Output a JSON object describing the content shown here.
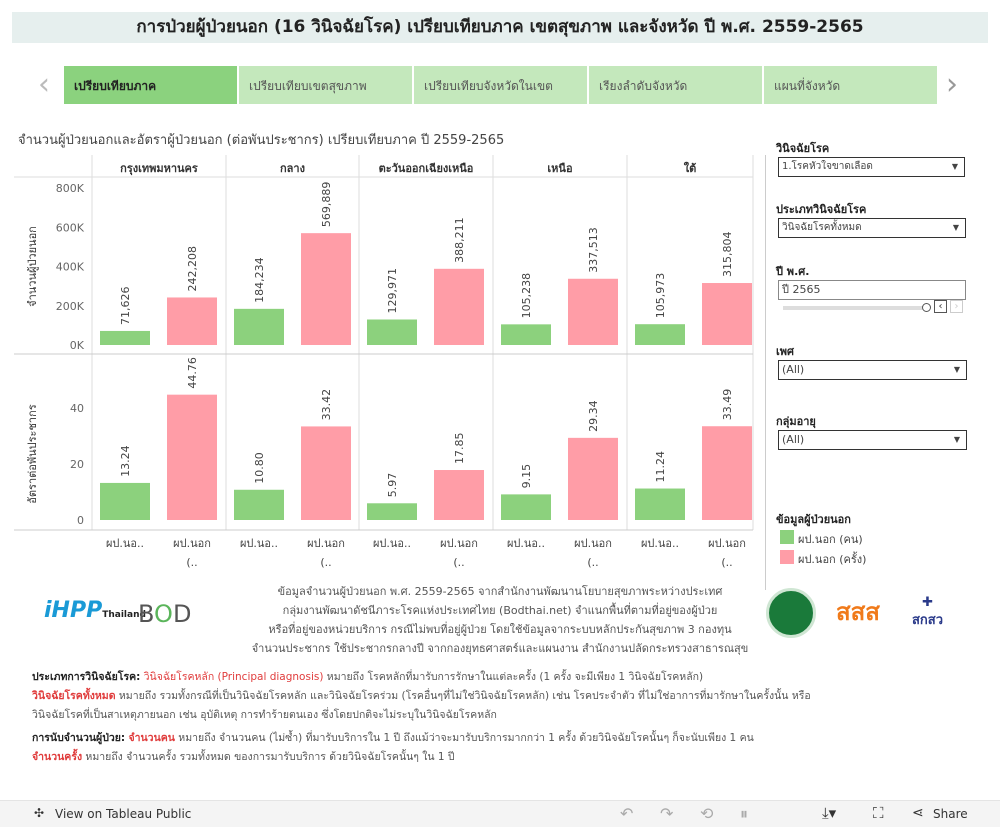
{
  "title": "การป่วยผู้ป่วยนอก (16 วินิจฉัยโรค) เปรียบเทียบภาค เขตสุขภาพ และจังหวัด ปี พ.ศ. 2559-2565",
  "tabs": [
    "เปรียบเทียบภาค",
    "เปรียบเทียบเขตสุขภาพ",
    "เปรียบเทียบจังหวัดในเขต",
    "เรียงลำดับจังหวัด",
    "แผนที่จังหวัด"
  ],
  "chart_title": "จำนวนผู้ป่วยนอกและอัตราผู้ป่วยนอก (ต่อพันประชากร) เปรียบเทียบภาค ปี 2559-2565",
  "chart_data": {
    "type": "bar",
    "regions": [
      "กรุงเทพมหานคร",
      "กลาง",
      "ตะวันออกเฉียงเหนือ",
      "เหนือ",
      "ใต้"
    ],
    "categories": [
      "ผป.นอ..",
      "ผป.นอก (.."
    ],
    "top": {
      "ylabel": "จำนวนผู้ป่วยนอก",
      "ticks": [
        "0K",
        "200K",
        "400K",
        "600K",
        "800K"
      ],
      "ylim": [
        0,
        800000
      ],
      "series": [
        {
          "name": "ผป.นอก (คน)",
          "values": [
            71626,
            184234,
            129971,
            105238,
            105973
          ],
          "labels": [
            "71,626",
            "184,234",
            "129,971",
            "105,238",
            "105,973"
          ]
        },
        {
          "name": "ผป.นอก (ครั้ง)",
          "values": [
            242208,
            569889,
            388211,
            337513,
            315804
          ],
          "labels": [
            "242,208",
            "569,889",
            "388,211",
            "337,513",
            "315,804"
          ]
        }
      ]
    },
    "bottom": {
      "ylabel": "อัตราต่อพันประชากร",
      "ticks": [
        "0",
        "20",
        "40"
      ],
      "ylim": [
        0,
        55
      ],
      "series": [
        {
          "name": "ผป.นอก (คน)",
          "values": [
            13.24,
            10.8,
            5.97,
            9.15,
            11.24
          ],
          "labels": [
            "13.24",
            "10.80",
            "5.97",
            "9.15",
            "11.24"
          ]
        },
        {
          "name": "ผป.นอก (ครั้ง)",
          "values": [
            44.76,
            33.42,
            17.85,
            29.34,
            33.49
          ],
          "labels": [
            "44.76",
            "33.42",
            "17.85",
            "29.34",
            "33.49"
          ]
        }
      ]
    },
    "colors": {
      "green": "#8cd17d",
      "pink": "#ff9da7"
    }
  },
  "filters": {
    "diag_label": "วินิจฉัยโรค",
    "diag_value": "1.โรคหัวใจขาดเลือด",
    "type_label": "ประเภทวินิจฉัยโรค",
    "type_value": "วินิจฉัยโรคทั้งหมด",
    "year_label": "ปี พ.ศ.",
    "year_value": "ปี 2565",
    "sex_label": "เพศ",
    "sex_value": "(All)",
    "age_label": "กลุ่มอายุ",
    "age_value": "(All)"
  },
  "legend": {
    "title": "ข้อมูลผู้ป่วยนอก",
    "items": [
      "ผป.นอก (คน)",
      "ผป.นอก (ครั้ง)"
    ]
  },
  "logos": [
    "iHPP Thailand",
    "BOD",
    "สสส",
    "สกสว"
  ],
  "source": [
    "ข้อมูลจำนวนผู้ป่วยนอก พ.ศ. 2559-2565 จากสำนักงานพัฒนานโยบายสุขภาพระหว่างประเทศ",
    "กลุ่มงานพัฒนาดัชนีภาระโรคแห่งประเทศไทย (Bodthai.net) จำแนกพื้นที่ตามที่อยู่ของผู้ป่วย",
    "หรือที่อยู่ของหน่วยบริการ กรณีไม่พบที่อยู่ผู้ป่วย โดยใช้ข้อมูลจากระบบหลักประกันสุขภาพ 3 กองทุน",
    "จำนวนประชากร ใช้ประชากรกลางปี จากกองยุทธศาสตร์และแผนงาน สำนักงานปลัดกระทรวงสาธารณสุข"
  ],
  "notes": {
    "n1_head": "ประเภทการวินิจฉัยโรค:",
    "n1_red": "วินิจฉัยโรคหลัก (Principal diagnosis)",
    "n1_text": " หมายถึง โรคหลักที่มารับการรักษาในแต่ละครั้ง (1 ครั้ง จะมีเพียง 1 วินิจฉัยโรคหลัก)",
    "n2_red": "วินิจฉัยโรคทั้งหมด",
    "n2_text": " หมายถึง รวมทั้งกรณีที่เป็นวินิจฉัยโรคหลัก และวินิจฉัยโรคร่วม (โรคอื่นๆที่ไม่ใช่วินิจฉัยโรคหลัก) เช่น โรคประจำตัว ที่ไม่ใช่อาการที่มารักษาในครั้งนั้น หรือ",
    "n3_text": "วินิจฉัยโรคที่เป็นสาเหตุภายนอก เช่น อุบัติเหตุ การทำร้ายตนเอง ซึ่งโดยปกติจะไม่ระบุในวินิจฉัยโรคหลัก",
    "n4_head": "การนับจำนวนผู้ป่วย:",
    "n4_red": "จำนวนคน",
    "n4_text": " หมายถึง จำนวนคน (ไม่ซ้ำ) ที่มารับบริการใน 1 ปี ถึงแม้ว่าจะมารับบริการมากกว่า 1 ครั้ง ด้วยวินิจฉัยโรคนั้นๆ ก็จะนับเพียง 1 คน",
    "n5_red": "จำนวนครั้ง",
    "n5_text": " หมายถึง จำนวนครั้ง รวมทั้งหมด ของการมารับบริการ ด้วยวินิจฉัยโรคนั้นๆ ใน 1 ปี"
  },
  "footer": {
    "view": "View on Tableau Public",
    "share": "Share"
  }
}
